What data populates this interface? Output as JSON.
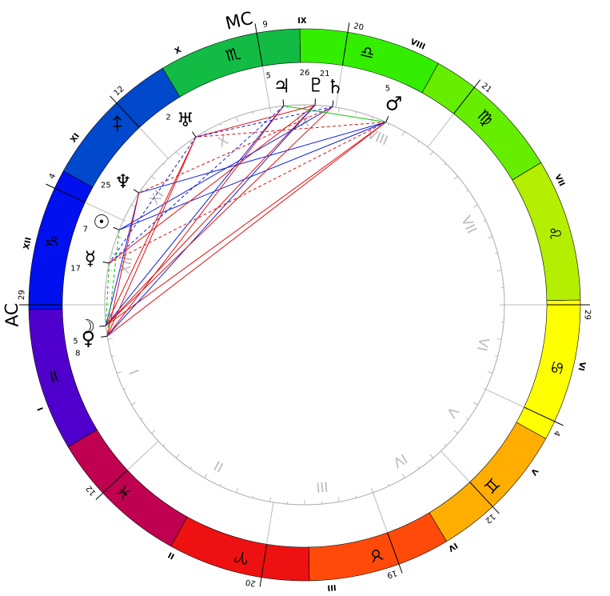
{
  "ac_label": "AC",
  "mc_label": "MC",
  "ascendant": {
    "sign": 9,
    "degree": 29
  },
  "signs": [
    {
      "glyph": "♈",
      "color": "#ee1111"
    },
    {
      "glyph": "♉",
      "color": "#ff4a0a"
    },
    {
      "glyph": "♊",
      "color": "#ffae00"
    },
    {
      "glyph": "♋",
      "color": "#ffff00"
    },
    {
      "glyph": "♌",
      "color": "#b4ee00"
    },
    {
      "glyph": "♍",
      "color": "#66ee00"
    },
    {
      "glyph": "♎",
      "color": "#33ee00"
    },
    {
      "glyph": "♏",
      "color": "#11bb44"
    },
    {
      "glyph": "♐",
      "color": "#0048cc"
    },
    {
      "glyph": "♑",
      "color": "#0010ee"
    },
    {
      "glyph": "♒",
      "color": "#5000cc"
    },
    {
      "glyph": "♓",
      "color": "#c00050"
    }
  ],
  "houses": [
    {
      "numeral": "I",
      "sign": 9,
      "degree": 29
    },
    {
      "numeral": "II",
      "sign": 11,
      "degree": 12
    },
    {
      "numeral": "III",
      "sign": 0,
      "degree": 20
    },
    {
      "numeral": "IV",
      "sign": 1,
      "degree": 19
    },
    {
      "numeral": "V",
      "sign": 2,
      "degree": 12
    },
    {
      "numeral": "VI",
      "sign": 3,
      "degree": 4
    },
    {
      "numeral": "VII",
      "sign": 3,
      "degree": 29
    },
    {
      "numeral": "VIII",
      "sign": 5,
      "degree": 21
    },
    {
      "numeral": "IX",
      "sign": 6,
      "degree": 20
    },
    {
      "numeral": "X",
      "sign": 7,
      "degree": 9
    },
    {
      "numeral": "XI",
      "sign": 8,
      "degree": 12
    },
    {
      "numeral": "XII",
      "sign": 9,
      "degree": 4
    }
  ],
  "planets": [
    {
      "glyph": "♃",
      "sign": 7,
      "degree": 5
    },
    {
      "glyph": "♇",
      "sign": 6,
      "degree": 26
    },
    {
      "glyph": "♄",
      "sign": 6,
      "degree": 21
    },
    {
      "glyph": "♂",
      "sign": 6,
      "degree": 5
    },
    {
      "glyph": "♅",
      "sign": 8,
      "degree": 2
    },
    {
      "glyph": "♆",
      "sign": 8,
      "degree": 25
    },
    {
      "glyph": "☉",
      "sign": 9,
      "degree": 7
    },
    {
      "glyph": "☿",
      "sign": 9,
      "degree": 17
    },
    {
      "glyph": "☽",
      "sign": 10,
      "degree": 5
    },
    {
      "glyph": "♀",
      "sign": 10,
      "degree": 8
    }
  ],
  "aspects": [
    {
      "from": 3,
      "to": 6,
      "style": "blue"
    },
    {
      "from": 3,
      "to": 7,
      "style": "red-dashed"
    },
    {
      "from": 3,
      "to": 8,
      "style": "red"
    },
    {
      "from": 3,
      "to": 9,
      "style": "red"
    },
    {
      "from": 3,
      "to": 4,
      "style": "red-dashed"
    },
    {
      "from": 3,
      "to": 5,
      "style": "blue"
    },
    {
      "from": 0,
      "to": 8,
      "style": "blue"
    },
    {
      "from": 0,
      "to": 9,
      "style": "red"
    },
    {
      "from": 0,
      "to": 7,
      "style": "blue-dashed"
    },
    {
      "from": 1,
      "to": 7,
      "style": "red"
    },
    {
      "from": 1,
      "to": 8,
      "style": "red"
    },
    {
      "from": 1,
      "to": 9,
      "style": "blue"
    },
    {
      "from": 2,
      "to": 8,
      "style": "red"
    },
    {
      "from": 2,
      "to": 6,
      "style": "blue"
    },
    {
      "from": 2,
      "to": 5,
      "style": "red-dashed"
    },
    {
      "from": 4,
      "to": 8,
      "style": "red"
    },
    {
      "from": 4,
      "to": 9,
      "style": "red"
    },
    {
      "from": 4,
      "to": 7,
      "style": "blue-dashed"
    },
    {
      "from": 5,
      "to": 8,
      "style": "blue"
    },
    {
      "from": 5,
      "to": 9,
      "style": "red"
    },
    {
      "from": 6,
      "to": 9,
      "style": "green-dashed"
    },
    {
      "from": 0,
      "to": 3,
      "style": "green"
    },
    {
      "from": 1,
      "to": 4,
      "style": "red"
    },
    {
      "from": 2,
      "to": 4,
      "style": "blue-dashed"
    },
    {
      "from": 7,
      "to": 8,
      "style": "green-dashed"
    }
  ]
}
